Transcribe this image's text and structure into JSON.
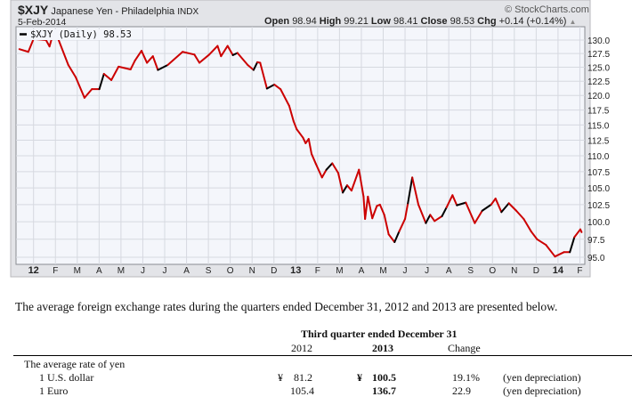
{
  "header": {
    "symbol": "$XJY",
    "name": "Japanese Yen - Philadelphia",
    "exchange": "INDX",
    "copyright": "© StockCharts.com",
    "date": "5-Feb-2014",
    "open_label": "Open",
    "open": "98.94",
    "high_label": "High",
    "high": "99.21",
    "low_label": "Low",
    "low": "98.41",
    "close_label": "Close",
    "close": "98.53",
    "chg_label": "Chg",
    "chg": "+0.14 (+0.14%)",
    "legend": "$XJY (Daily) 98.53"
  },
  "chart_data": {
    "type": "line",
    "title": "$XJY Japanese Yen - Philadelphia INDX",
    "series": [
      {
        "name": "$XJY (Daily)",
        "x_unit": "months since Jan 2012",
        "x": [
          -0.65,
          -0.24,
          0,
          0.57,
          0.73,
          0.84,
          1.11,
          1.59,
          1.93,
          2.33,
          2.67,
          3.01,
          3.22,
          3.56,
          3.89,
          4.44,
          4.64,
          4.94,
          5.19,
          5.46,
          5.69,
          6.14,
          6.82,
          7.36,
          7.59,
          8.04,
          8.42,
          8.58,
          8.88,
          9.12,
          9.33,
          9.8,
          10.07,
          10.24,
          10.37,
          10.68,
          11.02,
          11.3,
          11.7,
          11.9,
          12.04,
          12.33,
          12.45,
          12.59,
          12.72,
          12.92,
          13.2,
          13.4,
          13.67,
          13.94,
          14.15,
          14.35,
          14.55,
          14.89,
          15.1,
          15.17,
          15.3,
          15.5,
          15.71,
          15.85,
          16.05,
          16.25,
          16.52,
          16.73,
          17.0,
          17.13,
          17.33,
          17.61,
          17.95,
          18.15,
          18.35,
          18.69,
          18.9,
          19.17,
          19.37,
          19.78,
          20.19,
          20.53,
          20.94,
          21.14,
          21.41,
          21.75,
          22.09,
          22.43,
          22.77,
          23.04,
          23.45,
          23.86,
          24.27,
          24.54,
          24.75,
          25.02,
          25.08
        ],
        "y": [
          128.3,
          127.8,
          130.2,
          130.0,
          128.8,
          130.4,
          130.4,
          125.4,
          123.2,
          119.6,
          121.1,
          121.1,
          123.8,
          122.7,
          125.1,
          124.6,
          126.2,
          128.0,
          125.8,
          127.0,
          124.5,
          125.4,
          127.8,
          127.3,
          125.8,
          127.3,
          128.9,
          127.0,
          128.9,
          127.2,
          127.6,
          125.4,
          124.5,
          125.9,
          125.8,
          121.2,
          121.9,
          121.1,
          118.2,
          115.6,
          114.3,
          112.9,
          112.0,
          112.7,
          110.3,
          108.7,
          106.6,
          107.8,
          108.8,
          107.3,
          104.3,
          105.4,
          104.6,
          107.8,
          103.7,
          100.4,
          103.7,
          100.5,
          102.3,
          102.5,
          101.0,
          98.2,
          97.1,
          98.6,
          100.4,
          102.7,
          106.6,
          102.5,
          99.8,
          101.0,
          100.1,
          100.8,
          102.1,
          103.9,
          102.4,
          102.8,
          99.8,
          101.6,
          102.5,
          103.4,
          101.4,
          102.7,
          101.6,
          100.4,
          98.6,
          97.5,
          96.7,
          95.1,
          95.7,
          95.7,
          97.8,
          98.9,
          98.5
        ]
      }
    ],
    "x_tick_labels": [
      "12",
      "F",
      "M",
      "A",
      "M",
      "J",
      "J",
      "A",
      "S",
      "O",
      "N",
      "D",
      "13",
      "F",
      "M",
      "A",
      "M",
      "J",
      "J",
      "A",
      "S",
      "O",
      "N",
      "D",
      "14",
      "F"
    ],
    "y_ticks": [
      "130.0",
      "127.5",
      "125.0",
      "122.5",
      "120.0",
      "117.5",
      "115.0",
      "112.5",
      "110.0",
      "107.5",
      "105.0",
      "102.5",
      "100.0",
      "97.5",
      "95.0"
    ],
    "ylim": [
      94.5,
      131.5
    ],
    "y_scale": "log",
    "grid": true,
    "legend_position": "top-left",
    "colors": {
      "line": "#cc0000",
      "line_up": "#000000",
      "plot_bg": "#f4f6fb",
      "frame_bg": "#dcdde2"
    }
  },
  "text": {
    "paragraph": "The average foreign exchange rates during the quarters ended December 31, 2012 and 2013 are presented below."
  },
  "table": {
    "group_header": "Third quarter ended December 31",
    "columns": [
      "2012",
      "2013",
      "Change"
    ],
    "section": "The average rate of yen",
    "rows": [
      {
        "label": "1 U.S. dollar",
        "yen_2012": "¥",
        "v2012": "81.2",
        "yen_2013": "¥",
        "v2013": "100.5",
        "change": "19.1%",
        "note": "(yen depreciation)"
      },
      {
        "label": "1 Euro",
        "yen_2012": "",
        "v2012": "105.4",
        "yen_2013": "",
        "v2013": "136.7",
        "change": "22.9",
        "note": "(yen depreciation)"
      }
    ]
  }
}
